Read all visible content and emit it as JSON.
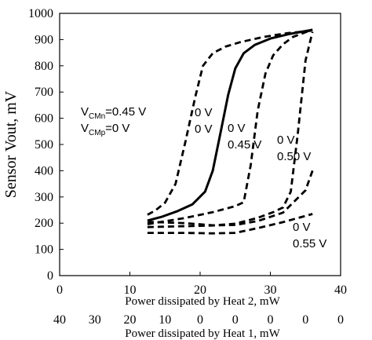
{
  "chart_data": {
    "type": "line",
    "title": "",
    "ylabel": "Sensor Vout, mV",
    "xlabel_top": "Power dissipated by Heat 2, mW",
    "xlabel_bottom": "Power dissipated by Heat 1, mW",
    "ylim": [
      0,
      1000
    ],
    "xlim": [
      0,
      40
    ],
    "yticks": [
      "0",
      "100",
      "200",
      "300",
      "400",
      "500",
      "600",
      "700",
      "800",
      "900",
      "1000"
    ],
    "xticks_top": [
      "0",
      "10",
      "20",
      "30",
      "40"
    ],
    "xticks_bottom": [
      "40",
      "30",
      "20",
      "10",
      "0",
      "0",
      "0",
      "0",
      "0"
    ],
    "grid": false,
    "legend": "none",
    "series": [
      {
        "style": "dashed",
        "x": [
          12.5,
          13.6,
          15,
          16.5,
          17.9,
          19.3,
          20.4,
          21.8,
          23.6,
          25.7,
          29,
          32.5,
          36
        ],
        "values": [
          232,
          248,
          278,
          350,
          510,
          680,
          800,
          848,
          873,
          890,
          910,
          925,
          934
        ]
      },
      {
        "style": "solid",
        "x": [
          12.5,
          14.6,
          16.8,
          18.9,
          20.7,
          21.8,
          22.9,
          24,
          25,
          26.2,
          27.8,
          30,
          32.8,
          36
        ],
        "values": [
          210,
          225,
          246,
          272,
          320,
          400,
          545,
          690,
          790,
          848,
          880,
          904,
          922,
          937
        ]
      },
      {
        "style": "dashed",
        "x": [
          12.5,
          17.9,
          21.8,
          25,
          26.2,
          27.2,
          28.2,
          29.3,
          30.4,
          31.8,
          33.2,
          36
        ],
        "values": [
          196,
          220,
          242,
          265,
          280,
          420,
          630,
          770,
          840,
          882,
          910,
          938
        ]
      },
      {
        "style": "dashed",
        "x": [
          12.5,
          21.8,
          25,
          28.2,
          30.4,
          31.8,
          32.9,
          33.9,
          35,
          36
        ],
        "values": [
          185,
          191,
          198,
          220,
          242,
          260,
          320,
          540,
          820,
          930
        ]
      },
      {
        "style": "dashed",
        "x": [
          12.5,
          17.9,
          21.8,
          25,
          28.2,
          31.8,
          35,
          36
        ],
        "values": [
          205,
          200,
          192,
          193,
          208,
          240,
          325,
          400
        ]
      },
      {
        "style": "dashed",
        "x": [
          12.5,
          17.9,
          21.8,
          25,
          28.2,
          31.8,
          36
        ],
        "values": [
          163,
          163,
          161,
          163,
          181,
          204,
          235
        ]
      }
    ],
    "annotations": [
      {
        "id": "a1",
        "lines": [
          {
            "main": "V",
            "sub": "CMn",
            "rest": "=0.45 V"
          },
          {
            "main": "V",
            "sub": "CMp",
            "rest": "=0 V"
          }
        ]
      },
      {
        "id": "a2",
        "lines": [
          {
            "main": "0 V"
          },
          {
            "main": "0 V"
          }
        ]
      },
      {
        "id": "a3",
        "lines": [
          {
            "main": "0 V"
          },
          {
            "main": "0.45 V"
          }
        ]
      },
      {
        "id": "a4",
        "lines": [
          {
            "main": "0 V"
          },
          {
            "main": "0.50 V"
          }
        ]
      },
      {
        "id": "a5",
        "lines": [
          {
            "main": "0 V"
          },
          {
            "main": "0.55 V"
          }
        ]
      }
    ]
  }
}
